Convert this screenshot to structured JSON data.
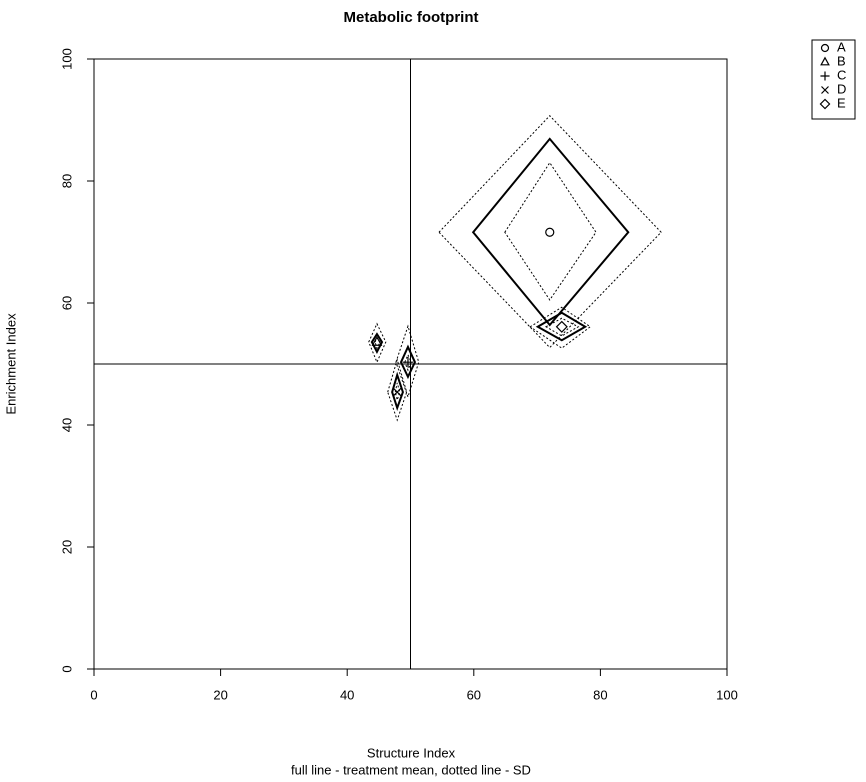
{
  "chart_data": {
    "type": "footprint",
    "title": "Metabolic footprint",
    "x_label": "Structure Index",
    "subtitle": "full line - treatment mean, dotted line - SD",
    "y_label": "Enrichment Index",
    "xlim": [
      0,
      100
    ],
    "ylim": [
      0,
      100
    ],
    "xticks": [
      0,
      20,
      40,
      60,
      80,
      100
    ],
    "yticks": [
      0,
      20,
      40,
      60,
      80,
      100
    ],
    "reference_lines": {
      "x": 50,
      "y": 50
    },
    "color": "#000000",
    "legend_position": "outside-top-right",
    "series": [
      {
        "name": "A",
        "marker": "circle",
        "x": 72.0,
        "y": 71.6,
        "mean_x_range": [
          59.9,
          84.4
        ],
        "mean_y_range": [
          56.4,
          86.9
        ],
        "sd_outer_x_range": [
          54.5,
          89.6
        ],
        "sd_outer_y_range": [
          52.7,
          90.7
        ],
        "sd_inner_x_range": [
          64.9,
          79.3
        ],
        "sd_inner_y_range": [
          60.5,
          83.0
        ]
      },
      {
        "name": "B",
        "marker": "triangle",
        "x": 44.7,
        "y": 53.6,
        "mean_x_range": [
          43.9,
          45.5
        ],
        "mean_y_range": [
          52.0,
          54.9
        ],
        "sd_outer_x_range": [
          43.4,
          46.1
        ],
        "sd_outer_y_range": [
          50.3,
          56.6
        ],
        "sd_inner_x_range": [
          44.4,
          45.2
        ],
        "sd_inner_y_range": [
          52.6,
          54.3
        ]
      },
      {
        "name": "C",
        "marker": "plus",
        "x": 49.6,
        "y": 50.3,
        "mean_x_range": [
          48.5,
          50.7
        ],
        "mean_y_range": [
          47.9,
          52.8
        ],
        "sd_outer_x_range": [
          47.7,
          51.3
        ],
        "sd_outer_y_range": [
          44.6,
          56.2
        ],
        "sd_inner_x_range": [
          49.1,
          50.1
        ],
        "sd_inner_y_range": [
          49.0,
          51.5
        ]
      },
      {
        "name": "D",
        "marker": "cross",
        "x": 47.9,
        "y": 45.4,
        "mean_x_range": [
          47.1,
          48.8
        ],
        "mean_y_range": [
          42.8,
          48.2
        ],
        "sd_outer_x_range": [
          46.4,
          49.4
        ],
        "sd_outer_y_range": [
          40.8,
          50.7
        ],
        "sd_inner_x_range": [
          47.6,
          48.3
        ],
        "sd_inner_y_range": [
          44.1,
          46.9
        ]
      },
      {
        "name": "E",
        "marker": "diamond",
        "x": 73.9,
        "y": 56.1,
        "mean_x_range": [
          70.1,
          77.6
        ],
        "mean_y_range": [
          53.9,
          58.4
        ],
        "sd_outer_x_range": [
          68.9,
          78.4
        ],
        "sd_outer_y_range": [
          52.6,
          59.3
        ],
        "sd_inner_x_range": [
          71.4,
          76.5
        ],
        "sd_inner_y_range": [
          54.6,
          57.5
        ]
      }
    ]
  }
}
